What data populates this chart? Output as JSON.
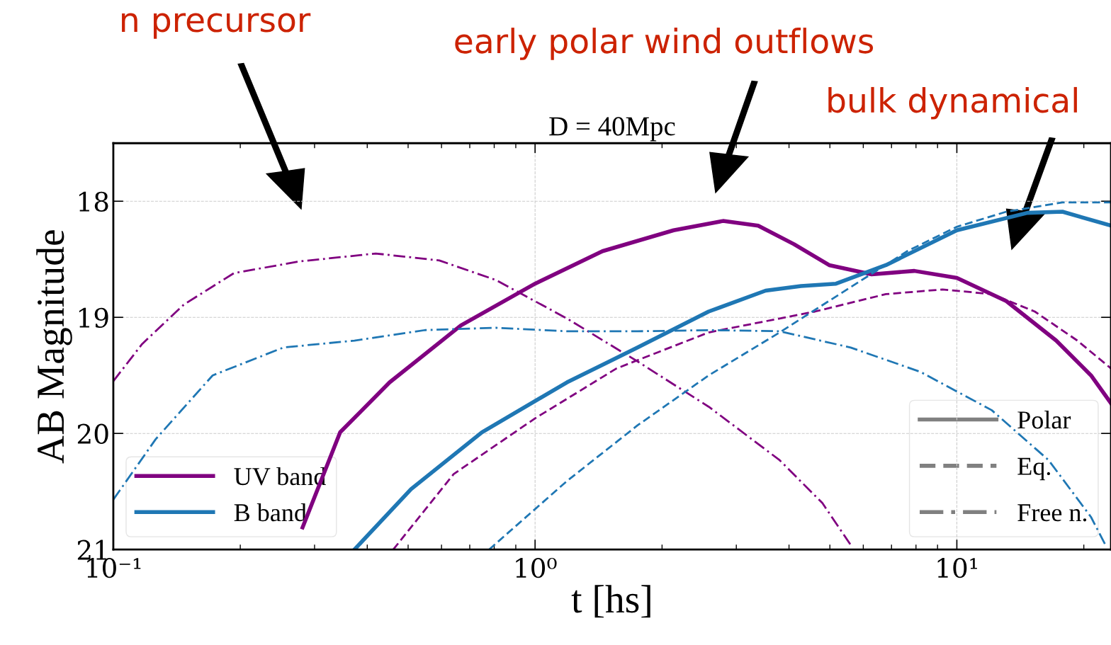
{
  "chart_data": {
    "type": "line",
    "title": "D = 40Mpc",
    "xlabel": "t [hs]",
    "ylabel": "AB Magnitude",
    "log": "x",
    "grid": true,
    "legend": "bottom left",
    "xlim": [
      0.1,
      23.2
    ],
    "xticks": [
      {
        "value": 0.1,
        "label": "10⁻¹"
      },
      {
        "value": 1,
        "label": "10⁰"
      },
      {
        "value": 10,
        "label": "10¹"
      }
    ],
    "ylim": [
      21,
      17.5
    ],
    "yticks": [
      18,
      19,
      20,
      21
    ],
    "annotations": [
      "n precursor",
      "early polar wind outflows",
      "bulk dynamical"
    ],
    "series": [
      {
        "name": "UV band",
        "color": "#800080",
        "line_style": "solid",
        "x": [
          0.281,
          0.345,
          0.452,
          0.667,
          1.0,
          1.445,
          2.13,
          2.79,
          3.38,
          4.11,
          4.98,
          6.28,
          7.93,
          10,
          13.1,
          17.2,
          20.8,
          23.2
        ],
        "values": [
          20.81,
          19.99,
          19.56,
          19.07,
          18.71,
          18.43,
          18.25,
          18.17,
          18.21,
          18.37,
          18.55,
          18.63,
          18.6,
          18.66,
          18.86,
          19.2,
          19.5,
          19.74
        ]
      },
      {
        "color": "#800080",
        "line_style": "dashed",
        "x": [
          0.461,
          0.641,
          1.0,
          1.56,
          2.58,
          4.61,
          6.79,
          9.25,
          12.1,
          15.3,
          19.3,
          23.2
        ],
        "values": [
          21.0,
          20.35,
          19.87,
          19.44,
          19.13,
          18.95,
          18.8,
          18.76,
          18.8,
          18.95,
          19.2,
          19.44
        ]
      },
      {
        "color": "#800080",
        "line_style": "dashdot",
        "x": [
          0.1,
          0.117,
          0.147,
          0.193,
          0.274,
          0.419,
          0.593,
          0.809,
          1.19,
          1.75,
          2.58,
          3.8,
          4.8,
          5.6
        ],
        "values": [
          19.55,
          19.23,
          18.89,
          18.62,
          18.52,
          18.45,
          18.51,
          18.68,
          19.01,
          19.38,
          19.77,
          20.23,
          20.6,
          20.96
        ]
      },
      {
        "name": "B band",
        "color": "#1f77b4",
        "line_style": "solid",
        "x": [
          0.373,
          0.508,
          0.748,
          1.19,
          1.75,
          2.58,
          3.52,
          4.27,
          5.17,
          6.79,
          10,
          14.7,
          17.8,
          23.2
        ],
        "values": [
          21.0,
          20.48,
          19.99,
          19.56,
          19.26,
          18.95,
          18.77,
          18.73,
          18.71,
          18.55,
          18.25,
          18.1,
          18.09,
          18.21
        ]
      },
      {
        "color": "#1f77b4",
        "line_style": "dashed",
        "x": [
          0.778,
          1.19,
          1.75,
          2.58,
          3.8,
          5.6,
          7.63,
          10,
          13.1,
          17.8,
          23.2
        ],
        "values": [
          21.0,
          20.41,
          19.93,
          19.5,
          19.13,
          18.74,
          18.43,
          18.22,
          18.09,
          18.01,
          18.01
        ]
      },
      {
        "color": "#1f77b4",
        "line_style": "dashdot",
        "x": [
          0.1,
          0.126,
          0.172,
          0.253,
          0.373,
          0.548,
          0.809,
          1.19,
          1.75,
          2.58,
          3.8,
          5.6,
          8.2,
          12.1,
          16.5,
          20.8,
          22.5
        ],
        "values": [
          20.57,
          20.05,
          19.5,
          19.26,
          19.2,
          19.11,
          19.09,
          19.12,
          19.12,
          19.11,
          19.12,
          19.26,
          19.47,
          19.8,
          20.23,
          20.72,
          20.96
        ]
      },
      {
        "name": "Polar",
        "color": "#808080",
        "line_style": "solid"
      },
      {
        "name": "Eq.",
        "color": "#808080",
        "line_style": "dashed"
      },
      {
        "name": "Free n.",
        "color": "#808080",
        "line_style": "dashdot"
      }
    ]
  }
}
